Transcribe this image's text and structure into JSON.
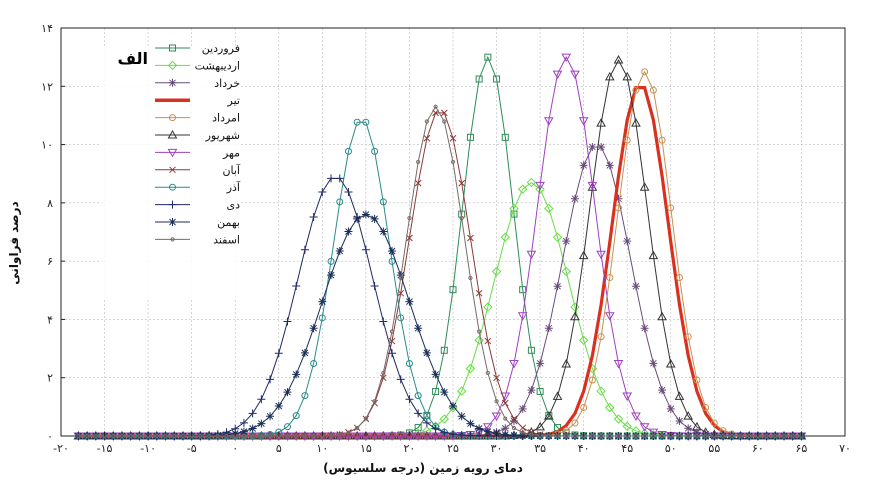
{
  "chart_data": {
    "type": "line",
    "panel_label": "الف",
    "xlabel": "دمای رویه زمین (درجه سلسیوس)",
    "ylabel": "درصد فراوانی",
    "xlim": [
      -20,
      70
    ],
    "ylim": [
      0,
      14
    ],
    "x_ticks": [
      {
        "value": -20,
        "label": "-۲۰"
      },
      {
        "value": -15,
        "label": "-۱۵"
      },
      {
        "value": -10,
        "label": "-۱۰"
      },
      {
        "value": -5,
        "label": "-۵"
      },
      {
        "value": 0,
        "label": "۰"
      },
      {
        "value": 5,
        "label": "۵"
      },
      {
        "value": 10,
        "label": "۱۰"
      },
      {
        "value": 15,
        "label": "۱۵"
      },
      {
        "value": 20,
        "label": "۲۰"
      },
      {
        "value": 25,
        "label": "۲۵"
      },
      {
        "value": 30,
        "label": "۳۰"
      },
      {
        "value": 35,
        "label": "۳۵"
      },
      {
        "value": 40,
        "label": "۴۰"
      },
      {
        "value": 45,
        "label": "۴۵"
      },
      {
        "value": 50,
        "label": "۵۰"
      },
      {
        "value": 55,
        "label": "۵۵"
      },
      {
        "value": 60,
        "label": "۶۰"
      },
      {
        "value": 65,
        "label": "۶۵"
      },
      {
        "value": 70,
        "label": "۷۰"
      }
    ],
    "y_ticks": [
      {
        "value": 0,
        "label": "۰"
      },
      {
        "value": 2,
        "label": "۲"
      },
      {
        "value": 4,
        "label": "۴"
      },
      {
        "value": 6,
        "label": "۶"
      },
      {
        "value": 8,
        "label": "۸"
      },
      {
        "value": 10,
        "label": "۱۰"
      },
      {
        "value": 12,
        "label": "۱۲"
      },
      {
        "value": 14,
        "label": "۱۴"
      }
    ],
    "grid": true,
    "legend_position": "top-left",
    "series": [
      {
        "name": "فروردین",
        "color": "#2e8b57",
        "marker": "square",
        "peak_x": 29,
        "peak_y": 13.0,
        "sigma": 2.9
      },
      {
        "name": "اردیبهشت",
        "color": "#66dd44",
        "marker": "diamond",
        "peak_x": 34,
        "peak_y": 8.7,
        "sigma": 4.3
      },
      {
        "name": "خرداد",
        "color": "#6a4c7a",
        "marker": "star",
        "peak_x": 41.5,
        "peak_y": 10.0,
        "sigma": 3.9
      },
      {
        "name": "تیر",
        "color": "#d93020",
        "marker": "none",
        "peak_x": 46.5,
        "peak_y": 12.1,
        "sigma": 3.2,
        "bold": true
      },
      {
        "name": "امرداد",
        "color": "#c89050",
        "marker": "circle",
        "peak_x": 47,
        "peak_y": 12.5,
        "sigma": 3.1
      },
      {
        "name": "شهریور",
        "color": "#333333",
        "marker": "triangle",
        "peak_x": 44,
        "peak_y": 12.9,
        "sigma": 3.3
      },
      {
        "name": "مهر",
        "color": "#a040c0",
        "marker": "triangle-down",
        "peak_x": 38,
        "peak_y": 13.0,
        "sigma": 3.3
      },
      {
        "name": "آبان",
        "color": "#8b3a3a",
        "marker": "x",
        "peak_x": 23.5,
        "peak_y": 11.2,
        "sigma": 3.5
      },
      {
        "name": "آذر",
        "color": "#2a8a8a",
        "marker": "circle",
        "peak_x": 14.5,
        "peak_y": 10.9,
        "sigma": 3.2
      },
      {
        "name": "دی",
        "color": "#1f2a66",
        "marker": "plus",
        "peak_x": 11.5,
        "peak_y": 8.9,
        "sigma": 4.3
      },
      {
        "name": "بهمن",
        "color": "#1a2f5a",
        "marker": "asterisk",
        "peak_x": 15,
        "peak_y": 7.6,
        "sigma": 5.0
      },
      {
        "name": "اسفند",
        "color": "#7a6a6a",
        "marker": "dot",
        "peak_x": 23,
        "peak_y": 11.3,
        "sigma": 3.3
      }
    ]
  }
}
